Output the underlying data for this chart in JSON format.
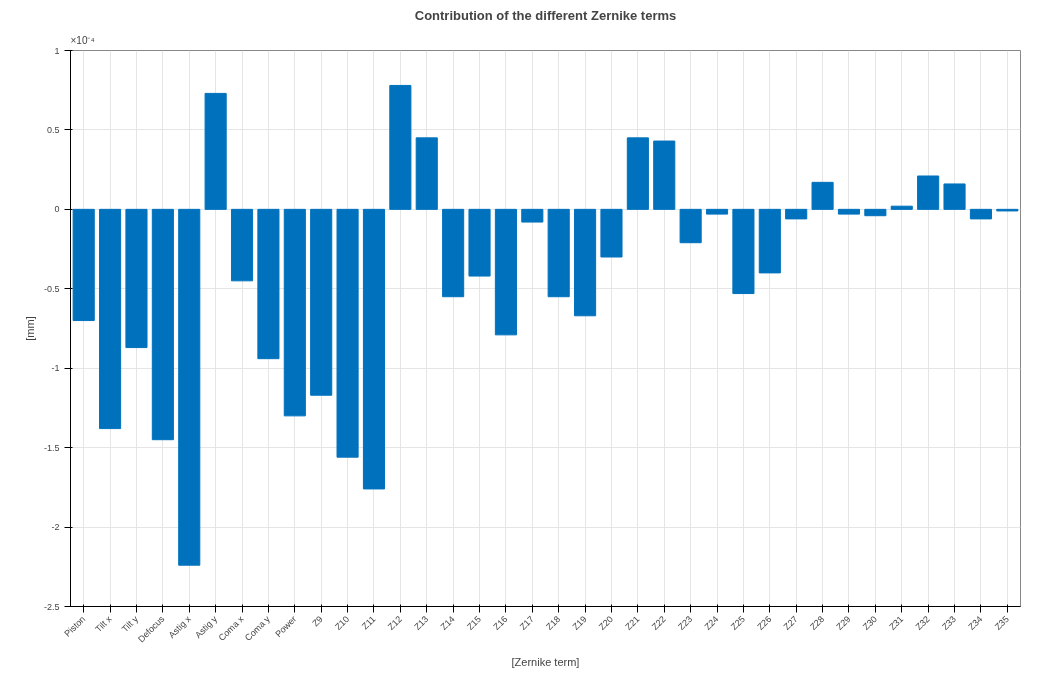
{
  "chart_data": {
    "type": "bar",
    "title": "Contribution of the different Zernike terms",
    "xlabel": "[Zernike term]",
    "ylabel": "[mm]",
    "annotations": [
      "×10⁻⁴"
    ],
    "categories": [
      "Piston",
      "Tilt x",
      "Tilt y",
      "Defocus",
      "Astig x",
      "Astig y",
      "Coma x",
      "Coma y",
      "Power",
      "Z9",
      "Z10",
      "Z11",
      "Z12",
      "Z13",
      "Z14",
      "Z15",
      "Z16",
      "Z17",
      "Z18",
      "Z19",
      "Z20",
      "Z21",
      "Z22",
      "Z23",
      "Z24",
      "Z25",
      "Z26",
      "Z27",
      "Z28",
      "Z29",
      "Z30",
      "Z31",
      "Z32",
      "Z33",
      "Z34",
      "Z35"
    ],
    "values": [
      -0.7,
      -1.38,
      -0.87,
      -1.45,
      -2.24,
      0.73,
      -0.45,
      -0.94,
      -1.3,
      -1.17,
      -1.56,
      -1.76,
      0.78,
      0.45,
      -0.55,
      -0.42,
      -0.79,
      -0.08,
      -0.55,
      -0.67,
      -0.3,
      0.45,
      0.43,
      -0.21,
      -0.03,
      -0.53,
      -0.4,
      -0.06,
      0.17,
      -0.03,
      -0.04,
      0.02,
      0.21,
      0.16,
      -0.06,
      -0.01
    ],
    "color": "#0072bd",
    "ylim": [
      -2.5,
      1
    ],
    "yticks": [
      -2.5,
      -2,
      -1.5,
      -1,
      -0.5,
      0,
      0.5,
      1
    ],
    "grid": true
  }
}
